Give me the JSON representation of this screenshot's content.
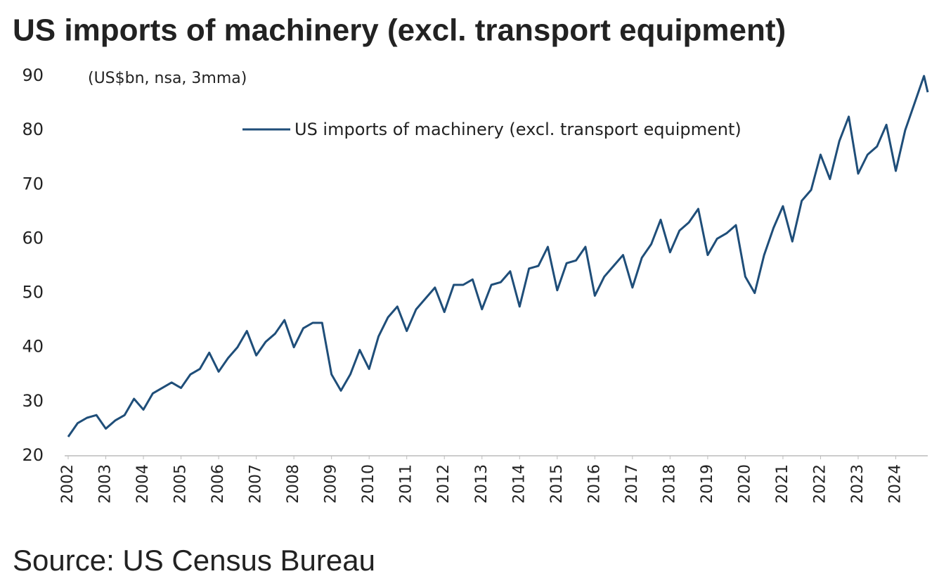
{
  "chart_data": {
    "type": "line",
    "title": "US imports of machinery (excl. transport equipment)",
    "subtitle": "(US$bn, nsa, 3mma)",
    "source": "Source: US Census Bureau",
    "x": [
      2002,
      2002.25,
      2002.5,
      2002.75,
      2003,
      2003.25,
      2003.5,
      2003.75,
      2004,
      2004.25,
      2004.5,
      2004.75,
      2005,
      2005.25,
      2005.5,
      2005.75,
      2006,
      2006.25,
      2006.5,
      2006.75,
      2007,
      2007.25,
      2007.5,
      2007.75,
      2008,
      2008.25,
      2008.5,
      2008.75,
      2009,
      2009.25,
      2009.5,
      2009.75,
      2010,
      2010.25,
      2010.5,
      2010.75,
      2011,
      2011.25,
      2011.5,
      2011.75,
      2012,
      2012.25,
      2012.5,
      2012.75,
      2013,
      2013.25,
      2013.5,
      2013.75,
      2014,
      2014.25,
      2014.5,
      2014.75,
      2015,
      2015.25,
      2015.5,
      2015.75,
      2016,
      2016.25,
      2016.5,
      2016.75,
      2017,
      2017.25,
      2017.5,
      2017.75,
      2018,
      2018.25,
      2018.5,
      2018.75,
      2019,
      2019.25,
      2019.5,
      2019.75,
      2020,
      2020.25,
      2020.5,
      2020.75,
      2021,
      2021.25,
      2021.5,
      2021.75,
      2022,
      2022.25,
      2022.5,
      2022.75,
      2023,
      2023.25,
      2023.5,
      2023.75,
      2024,
      2024.25,
      2024.5,
      2024.75,
      2024.85
    ],
    "series": [
      {
        "name": "US imports of machinery (excl. transport equipment)",
        "color": "#1f4e79",
        "values": [
          23.5,
          26,
          27,
          27.5,
          25,
          26.5,
          27.5,
          30.5,
          28.5,
          31.5,
          32.5,
          33.5,
          32.5,
          35,
          36,
          39,
          35.5,
          38,
          40,
          43,
          38.5,
          41,
          42.5,
          45,
          40,
          43.5,
          44.5,
          44.5,
          35,
          32,
          35,
          39.5,
          36,
          42,
          45.5,
          47.5,
          43,
          47,
          49,
          51,
          46.5,
          51.5,
          51.5,
          52.5,
          47,
          51.5,
          52,
          54,
          47.5,
          54.5,
          55,
          58.5,
          50.5,
          55.5,
          56,
          58.5,
          49.5,
          53,
          55,
          57,
          51,
          56.5,
          59,
          63.5,
          57.5,
          61.5,
          63,
          65.5,
          57,
          60,
          61,
          62.5,
          53,
          50,
          57,
          62,
          66,
          59.5,
          67,
          69,
          75.5,
          71,
          78,
          82.5,
          72,
          75.5,
          77,
          81,
          72.5,
          80,
          85,
          90,
          87
        ]
      }
    ],
    "xlim": [
      2002,
      2024.85
    ],
    "xticks": [
      2002,
      2003,
      2004,
      2005,
      2006,
      2007,
      2008,
      2009,
      2010,
      2011,
      2012,
      2013,
      2014,
      2015,
      2016,
      2017,
      2018,
      2019,
      2020,
      2021,
      2022,
      2023,
      2024
    ],
    "ylim": [
      20,
      90
    ],
    "yticks": [
      20,
      30,
      40,
      50,
      60,
      70,
      80,
      90
    ]
  }
}
